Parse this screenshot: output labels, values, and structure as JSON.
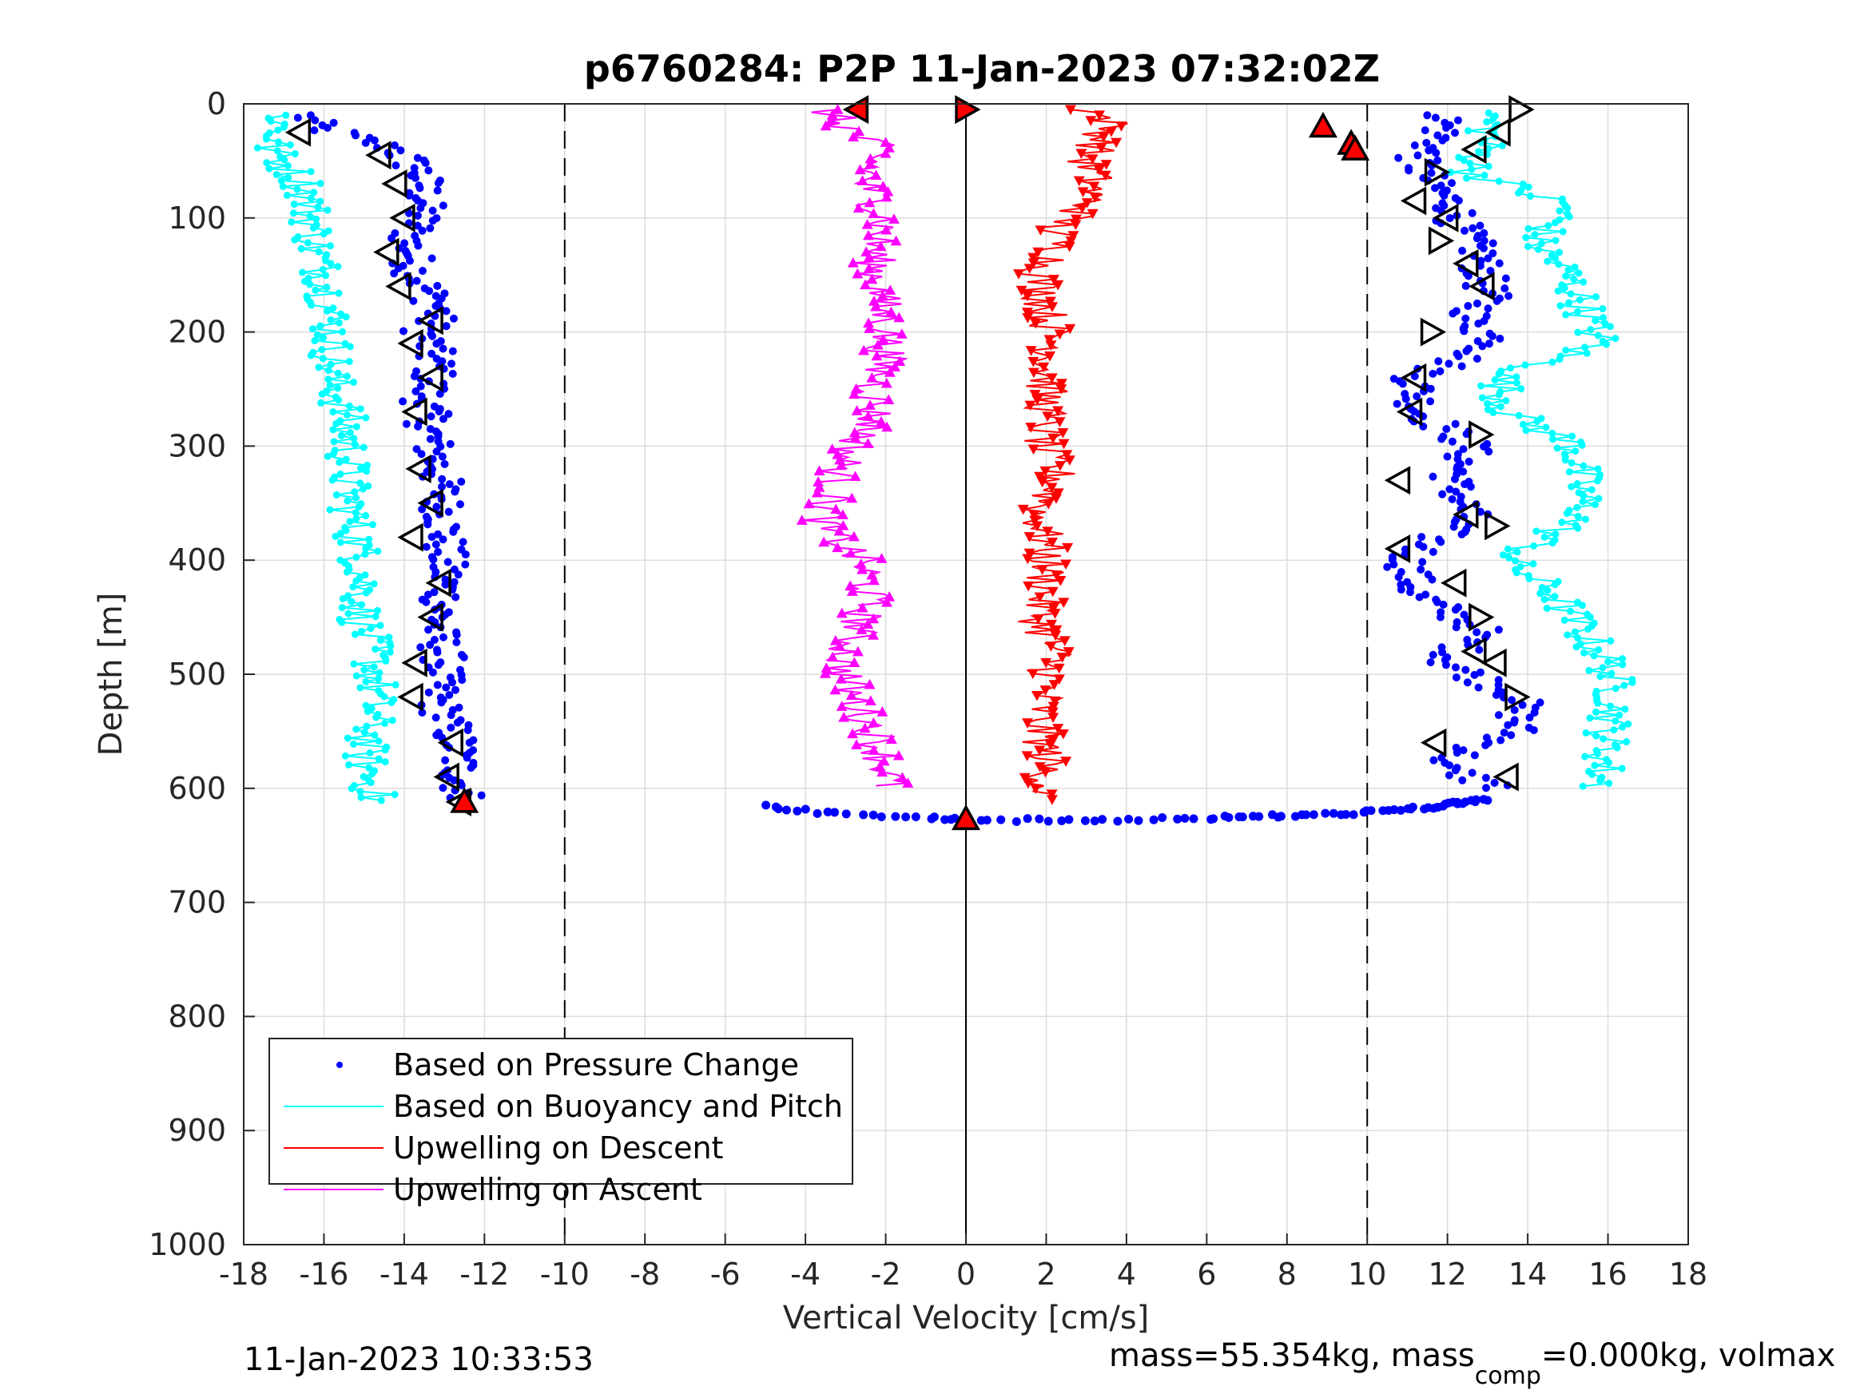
{
  "chart_data": {
    "type": "scatter",
    "title": "p6760284: P2P 11-Jan-2023 07:32:02Z",
    "xlabel": "Vertical Velocity [cm/s]",
    "ylabel": "Depth [m]",
    "xlim": [
      -18,
      18
    ],
    "ylim": [
      0,
      1000
    ],
    "y_reversed": true,
    "grid": true,
    "x_ticks": [
      "-18",
      "-16",
      "-14",
      "-12",
      "-10",
      "-8",
      "-6",
      "-4",
      "-2",
      "0",
      "2",
      "4",
      "6",
      "8",
      "10",
      "12",
      "14",
      "16",
      "18"
    ],
    "y_ticks": [
      "0",
      "100",
      "200",
      "300",
      "400",
      "500",
      "600",
      "700",
      "800",
      "900",
      "1000"
    ],
    "reference_lines": {
      "solid_x": 0,
      "dashed_x": [
        -10,
        10
      ]
    },
    "legend": {
      "placement": "bottom-left",
      "entries": [
        "Based on Pressure Change",
        "Based on Buoyancy and Pitch",
        "Upwelling on Descent",
        "Upwelling on Ascent"
      ]
    },
    "series": [
      {
        "name": "Based on Pressure Change",
        "color": "#0000ff",
        "marker": "dot",
        "segments": [
          {
            "depth": [
              10,
              20,
              40,
              60,
              80,
              100,
              120,
              150,
              180,
              200,
              230,
              260,
              300,
              330,
              360,
              400,
              430,
              460,
              490,
              520,
              560,
              590,
              610
            ],
            "velocity": [
              -16.5,
              -16.2,
              -14.2,
              -13.6,
              -13.5,
              -13.6,
              -13.9,
              -13.7,
              -13.1,
              -13.5,
              -13.2,
              -13.5,
              -13.3,
              -13.1,
              -13.0,
              -13.0,
              -13.0,
              -13.2,
              -13.0,
              -13.2,
              -12.7,
              -12.6,
              -12.5
            ]
          },
          {
            "depth": [
              10,
              30,
              50,
              70,
              90,
              110,
              130,
              150,
              170,
              190,
              210,
              240,
              270,
              300,
              330,
              360,
              400,
              430,
              460,
              490,
              520,
              550,
              580,
              600
            ],
            "velocity": [
              12.0,
              11.8,
              11.2,
              11.6,
              12.2,
              12.3,
              12.8,
              12.9,
              13.0,
              12.5,
              13.3,
              11.2,
              11.3,
              12.6,
              12.1,
              12.5,
              11.0,
              11.2,
              12.8,
              12.0,
              13.8,
              13.7,
              11.7,
              13.4
            ]
          },
          {
            "depth": [
              615,
              620,
              624,
              626,
              627,
              628,
              628,
              627,
              626,
              625,
              624,
              623,
              621,
              619,
              617,
              614,
              612,
              610
            ],
            "velocity": [
              -5.0,
              -4.0,
              -2.5,
              -1.0,
              0.0,
              1.5,
              3.0,
              4.5,
              6.0,
              7.0,
              8.0,
              9.0,
              10.0,
              10.8,
              11.5,
              12.0,
              12.5,
              13.0
            ]
          }
        ]
      },
      {
        "name": "Based on Buoyancy and Pitch",
        "color": "#00ffff",
        "marker": "line-dot",
        "segments": [
          {
            "depth": [
              10,
              40,
              70,
              100,
              130,
              160,
              200,
              240,
              270,
              300,
              340,
              380,
              410,
              450,
              480,
              510,
              540,
              570,
              600,
              612
            ],
            "velocity": [
              -17.0,
              -17.3,
              -16.5,
              -16.3,
              -16.2,
              -15.9,
              -15.8,
              -15.8,
              -15.5,
              -15.4,
              -15.4,
              -15.2,
              -15.0,
              -15.1,
              -14.8,
              -14.7,
              -14.8,
              -15.0,
              -14.8,
              -14.7
            ]
          },
          {
            "depth": [
              8,
              30,
              60,
              90,
              120,
              150,
              180,
              210,
              240,
              270,
              300,
              330,
              360,
              400,
              430,
              460,
              490,
              520,
              550,
              580,
              600
            ],
            "velocity": [
              13.0,
              13.0,
              12.6,
              15.0,
              14.2,
              15.0,
              15.4,
              15.8,
              13.3,
              13.5,
              15.2,
              15.3,
              15.4,
              13.5,
              14.7,
              15.3,
              16.0,
              16.2,
              16.0,
              15.9,
              15.8
            ]
          }
        ]
      },
      {
        "name": "Upwelling on Descent",
        "color": "#ff0000",
        "marker": "triangle-down",
        "segments": [
          {
            "depth": [
              5,
              15,
              30,
              50,
              70,
              90,
              110,
              130,
              150,
              180,
              210,
              240,
              270,
              300,
              330,
              360,
              390,
              420,
              450,
              480,
              510,
              540,
              570,
              600,
              610
            ],
            "velocity": [
              3.0,
              3.6,
              3.4,
              3.0,
              3.2,
              3.0,
              2.2,
              2.3,
              1.8,
              2.0,
              2.2,
              2.0,
              2.0,
              1.9,
              2.3,
              1.8,
              2.0,
              2.0,
              1.8,
              2.2,
              2.0,
              1.8,
              2.0,
              2.0,
              1.8
            ]
          }
        ]
      },
      {
        "name": "Upwelling on Ascent",
        "color": "#ff00ff",
        "marker": "triangle-up",
        "segments": [
          {
            "depth": [
              5,
              20,
              40,
              70,
              100,
              130,
              160,
              190,
              220,
              250,
              280,
              310,
              340,
              370,
              400,
              430,
              460,
              490,
              520,
              550,
              580,
              600
            ],
            "velocity": [
              -3.5,
              -3.0,
              -2.2,
              -2.5,
              -2.0,
              -2.3,
              -2.2,
              -2.0,
              -2.0,
              -2.3,
              -2.3,
              -3.0,
              -3.3,
              -3.6,
              -2.6,
              -2.4,
              -2.7,
              -3.1,
              -2.8,
              -2.3,
              -2.0,
              -1.9
            ]
          }
        ]
      }
    ],
    "markers": {
      "open_triangles_left_branch": {
        "depth": [
          25,
          45,
          70,
          100,
          130,
          160,
          190,
          210,
          240,
          270,
          320,
          350,
          380,
          420,
          450,
          490,
          520,
          560,
          590,
          612
        ],
        "velocity": [
          -16.6,
          -14.6,
          -14.2,
          -14.0,
          -14.4,
          -14.1,
          -13.3,
          -13.8,
          -13.3,
          -13.7,
          -13.6,
          -13.3,
          -13.8,
          -13.1,
          -13.3,
          -13.7,
          -13.8,
          -12.8,
          -12.9,
          -12.6
        ]
      },
      "open_triangles_right_branch": {
        "depth": [
          5,
          25,
          40,
          60,
          85,
          100,
          120,
          140,
          160,
          200,
          240,
          270,
          290,
          330,
          360,
          370,
          390,
          420,
          450,
          480,
          490,
          520,
          560,
          590
        ],
        "velocity": [
          13.8,
          13.3,
          12.7,
          11.7,
          11.2,
          12.0,
          11.8,
          12.5,
          12.9,
          11.6,
          11.2,
          11.1,
          12.8,
          10.8,
          12.5,
          13.2,
          10.8,
          12.2,
          12.8,
          12.7,
          13.2,
          13.7,
          11.7,
          13.5
        ]
      },
      "filled_red_triangles": {
        "depth": [
          5,
          5,
          20,
          35,
          40,
          612,
          627
        ],
        "velocity": [
          -2.7,
          0.0,
          8.9,
          9.6,
          9.7,
          -12.5,
          0.0
        ]
      }
    }
  },
  "footer": {
    "timestamp": "11-Jan-2023 10:33:53",
    "mass_text_1": "mass=55.354kg, mass",
    "mass_sub": "comp",
    "mass_text_2": "=0.000kg, volmax"
  }
}
